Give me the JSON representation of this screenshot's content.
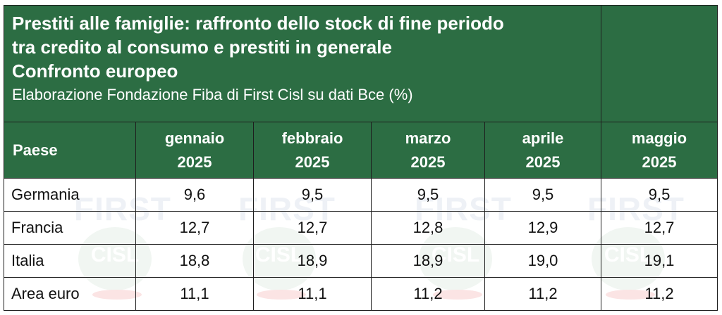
{
  "title": {
    "line1": "Prestiti alle famiglie: raffronto dello stock di fine periodo",
    "line2": "tra credito al consumo e prestiti in generale",
    "line3": "Confronto europeo",
    "subtitle": "Elaborazione Fondazione Fiba di First Cisl su dati Bce (%)"
  },
  "header": {
    "country": "Paese",
    "months": [
      {
        "name": "gennaio",
        "year": "2025"
      },
      {
        "name": "febbraio",
        "year": "2025"
      },
      {
        "name": "marzo",
        "year": "2025"
      },
      {
        "name": "aprile",
        "year": "2025"
      },
      {
        "name": "maggio",
        "year": "2025"
      }
    ]
  },
  "rows": [
    {
      "country": "Germania",
      "values": [
        "9,6",
        "9,5",
        "9,5",
        "9,5",
        "9,5"
      ]
    },
    {
      "country": "Francia",
      "values": [
        "12,7",
        "12,7",
        "12,8",
        "12,9",
        "12,7"
      ]
    },
    {
      "country": "Italia",
      "values": [
        "18,8",
        "18,9",
        "18,9",
        "19,0",
        "19,1"
      ]
    },
    {
      "country": "Area euro",
      "values": [
        "11,1",
        "11,1",
        "11,2",
        "11,2",
        "11,2"
      ]
    }
  ],
  "watermark": {
    "first": "FIRST",
    "cisl": "CISL"
  },
  "colors": {
    "header_bg": "#2c6d43",
    "header_text": "#ffffff",
    "border": "#1e1e1e"
  }
}
